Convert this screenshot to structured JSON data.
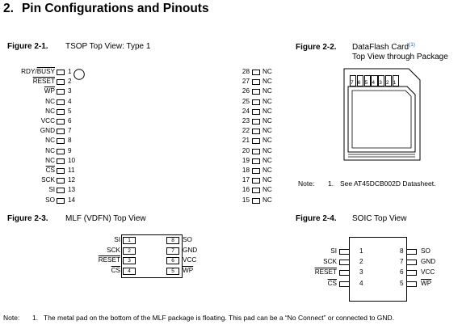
{
  "section": {
    "number": "2.",
    "title": "Pin Configurations and Pinouts"
  },
  "figures": {
    "tsop": {
      "label": "Figure 2-1.",
      "caption": "TSOP Top View: Type 1",
      "left_pins": [
        {
          "name": "RDY/BUSY",
          "num": "1"
        },
        {
          "name": "RESET",
          "num": "2"
        },
        {
          "name": "WP",
          "num": "3"
        },
        {
          "name": "NC",
          "num": "4"
        },
        {
          "name": "NC",
          "num": "5"
        },
        {
          "name": "VCC",
          "num": "6"
        },
        {
          "name": "GND",
          "num": "7"
        },
        {
          "name": "NC",
          "num": "8"
        },
        {
          "name": "NC",
          "num": "9"
        },
        {
          "name": "NC",
          "num": "10"
        },
        {
          "name": "CS",
          "num": "11"
        },
        {
          "name": "SCK",
          "num": "12"
        },
        {
          "name": "SI",
          "num": "13"
        },
        {
          "name": "SO",
          "num": "14"
        }
      ],
      "right_pins": [
        {
          "num": "28",
          "name": "NC"
        },
        {
          "num": "27",
          "name": "NC"
        },
        {
          "num": "26",
          "name": "NC"
        },
        {
          "num": "25",
          "name": "NC"
        },
        {
          "num": "24",
          "name": "NC"
        },
        {
          "num": "23",
          "name": "NC"
        },
        {
          "num": "22",
          "name": "NC"
        },
        {
          "num": "21",
          "name": "NC"
        },
        {
          "num": "20",
          "name": "NC"
        },
        {
          "num": "19",
          "name": "NC"
        },
        {
          "num": "18",
          "name": "NC"
        },
        {
          "num": "17",
          "name": "NC"
        },
        {
          "num": "16",
          "name": "NC"
        },
        {
          "num": "15",
          "name": "NC"
        }
      ]
    },
    "card": {
      "label": "Figure 2-2.",
      "caption_main": "DataFlash Card",
      "caption_sup": "(1)",
      "caption_line2": "Top View through Package",
      "pads": [
        "7",
        "6",
        "5",
        "4",
        "3",
        "2",
        "1"
      ]
    },
    "card_note": {
      "prefix": "Note:",
      "num": "1.",
      "text": "See AT45DCB002D Datasheet."
    },
    "mlf": {
      "label": "Figure 2-3.",
      "caption": "MLF (VDFN) Top View",
      "left_pins": [
        {
          "name": "SI",
          "num": "1"
        },
        {
          "name": "SCK",
          "num": "2"
        },
        {
          "name": "RESET",
          "num": "3"
        },
        {
          "name": "CS",
          "num": "4"
        }
      ],
      "right_pins": [
        {
          "num": "8",
          "name": "SO"
        },
        {
          "num": "7",
          "name": "GND"
        },
        {
          "num": "6",
          "name": "VCC"
        },
        {
          "num": "5",
          "name": "WP"
        }
      ]
    },
    "soic": {
      "label": "Figure 2-4.",
      "caption": "SOIC Top View",
      "left_pins": [
        {
          "name": "SI",
          "num": "1"
        },
        {
          "name": "SCK",
          "num": "2"
        },
        {
          "name": "RESET",
          "num": "3"
        },
        {
          "name": "CS",
          "num": "4"
        }
      ],
      "right_pins": [
        {
          "num": "8",
          "name": "SO"
        },
        {
          "num": "7",
          "name": "GND"
        },
        {
          "num": "6",
          "name": "VCC"
        },
        {
          "num": "5",
          "name": "WP"
        }
      ]
    }
  },
  "bottom_note": {
    "prefix": "Note:",
    "num": "1.",
    "text": "The metal pad on the bottom of the MLF package is floating. This pad can be a “No Connect” or connected to GND."
  }
}
